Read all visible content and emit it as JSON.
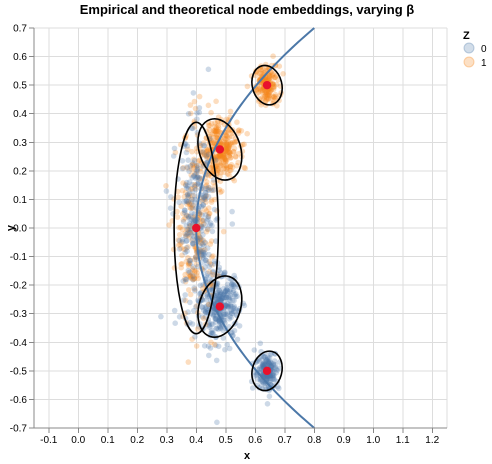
{
  "chart_data": {
    "type": "scatter",
    "title": "Empirical and theoretical node embeddings, varying β",
    "xlabel": "x",
    "ylabel": "y",
    "xlim": [
      -0.15,
      1.25
    ],
    "ylim": [
      -0.7,
      0.7
    ],
    "x_ticks": [
      -0.1,
      0.0,
      0.1,
      0.2,
      0.3,
      0.4,
      0.5,
      0.6,
      0.7,
      0.8,
      0.9,
      1.0,
      1.1,
      1.2
    ],
    "y_ticks": [
      -0.7,
      -0.6,
      -0.5,
      -0.4,
      -0.3,
      -0.2,
      -0.1,
      0.0,
      0.1,
      0.2,
      0.3,
      0.4,
      0.5,
      0.6,
      0.7
    ],
    "grid": true,
    "legend": {
      "title": "Z",
      "placement": "top-right",
      "entries": [
        {
          "label": "0",
          "color": "#4c78a8"
        },
        {
          "label": "1",
          "color": "#f58518"
        }
      ]
    },
    "curve": {
      "color": "#4c78a8",
      "vertex_x": 0.4,
      "vertex_y": 0.0,
      "endpoints": [
        {
          "x": 0.8,
          "y": 0.7
        },
        {
          "x": 0.8,
          "y": -0.7
        }
      ]
    },
    "clusters": [
      {
        "z": "1",
        "center": [
          0.64,
          0.5
        ],
        "rx": 0.045,
        "ry": 0.075,
        "count": 180
      },
      {
        "z": "1",
        "center": [
          0.48,
          0.275
        ],
        "rx": 0.07,
        "ry": 0.125,
        "count": 300
      },
      {
        "z": "0",
        "center": [
          0.48,
          -0.275
        ],
        "rx": 0.07,
        "ry": 0.125,
        "count": 300
      },
      {
        "z": "0",
        "center": [
          0.64,
          -0.5
        ],
        "rx": 0.045,
        "ry": 0.075,
        "count": 180
      },
      {
        "z": "1",
        "center": [
          0.4,
          0.0
        ],
        "rx": 0.075,
        "ry": 0.37,
        "count": 260
      },
      {
        "z": "0",
        "center": [
          0.4,
          0.0
        ],
        "rx": 0.075,
        "ry": 0.37,
        "count": 260
      }
    ],
    "theoretical_points": [
      {
        "x": 0.64,
        "y": 0.5
      },
      {
        "x": 0.48,
        "y": 0.275
      },
      {
        "x": 0.4,
        "y": 0.0
      },
      {
        "x": 0.48,
        "y": -0.275
      },
      {
        "x": 0.64,
        "y": -0.5
      }
    ],
    "ellipses": [
      {
        "cx": 0.64,
        "cy": 0.5,
        "rx": 0.05,
        "ry": 0.07,
        "angle": -15
      },
      {
        "cx": 0.48,
        "cy": 0.275,
        "rx": 0.07,
        "ry": 0.11,
        "angle": -18
      },
      {
        "cx": 0.4,
        "cy": 0.0,
        "rx": 0.075,
        "ry": 0.37,
        "angle": 0
      },
      {
        "cx": 0.48,
        "cy": -0.275,
        "rx": 0.07,
        "ry": 0.11,
        "angle": 18
      },
      {
        "cx": 0.64,
        "cy": -0.5,
        "rx": 0.05,
        "ry": 0.07,
        "angle": 15
      }
    ],
    "outliers": [
      {
        "z": "0",
        "x": 0.47,
        "y": -0.68
      },
      {
        "z": "1",
        "x": 0.38,
        "y": 0.43
      },
      {
        "z": "0",
        "x": 0.28,
        "y": -0.31
      },
      {
        "z": "1",
        "x": 0.45,
        "y": -0.4
      }
    ],
    "colors": {
      "z0": "#4c78a8",
      "z1": "#f58518",
      "theoretical": "#e8112d",
      "ellipse": "#000000"
    }
  }
}
